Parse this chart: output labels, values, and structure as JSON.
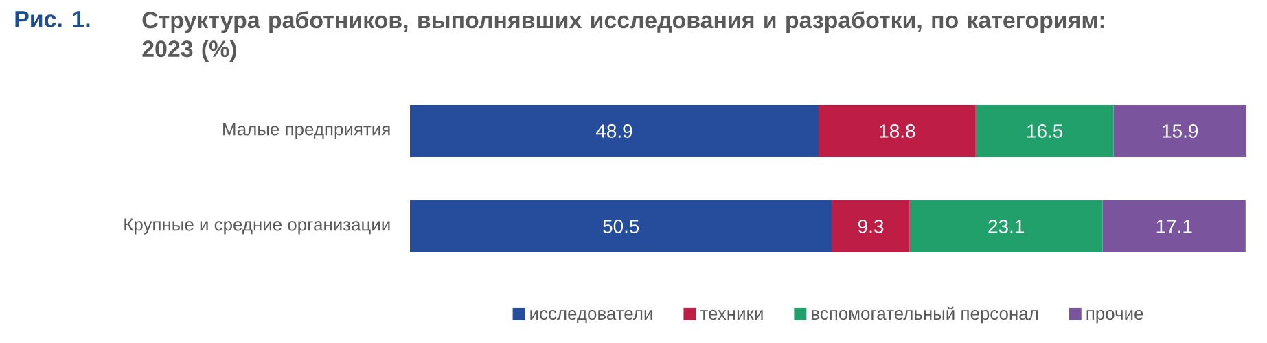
{
  "chart_data": {
    "type": "bar",
    "orientation": "horizontal",
    "stacked": true,
    "title": "Структура работников, выполнявших исследования и разработки, по категориям: 2023 (%)",
    "annotations": [
      "Рис. 1."
    ],
    "categories": [
      "Малые предприятия",
      "Крупные и средние организации"
    ],
    "series": [
      {
        "name": "исследователи",
        "color": "#264d9b",
        "values": [
          48.9,
          50.5
        ]
      },
      {
        "name": "техники",
        "color": "#be1e45",
        "values": [
          18.8,
          9.3
        ]
      },
      {
        "name": "вспомогательный персонал",
        "color": "#22a06b",
        "values": [
          16.5,
          23.1
        ]
      },
      {
        "name": "прочие",
        "color": "#7a559e",
        "values": [
          15.9,
          17.1
        ]
      }
    ],
    "data_labels": true,
    "legend": "bottom"
  }
}
